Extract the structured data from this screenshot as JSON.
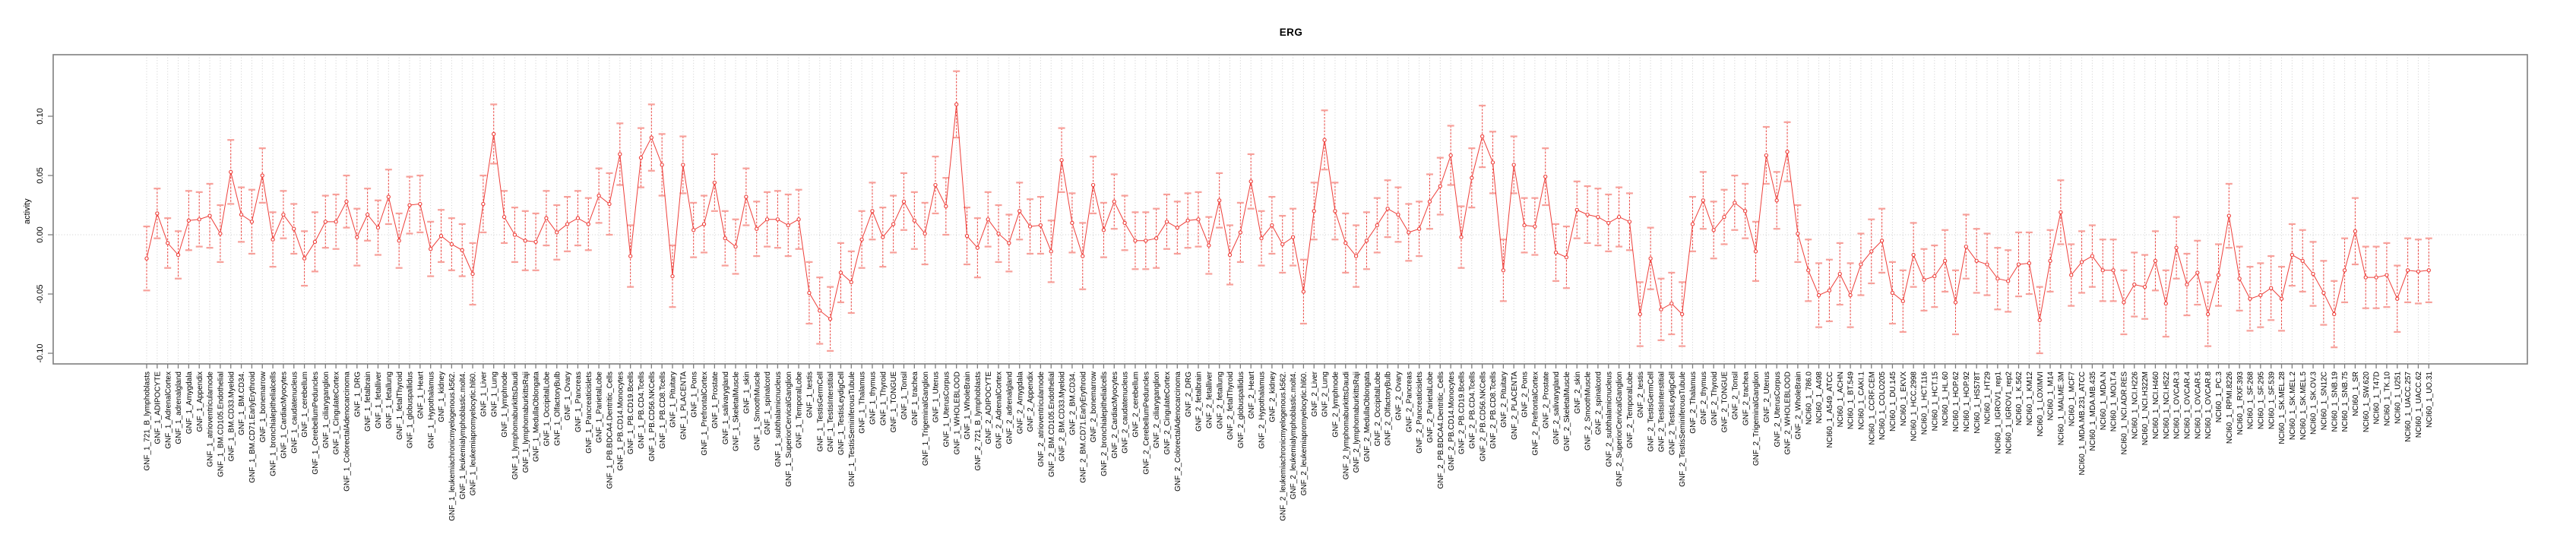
{
  "page": {
    "background": "#ffffff"
  },
  "chart_data": {
    "type": "line",
    "title": "ERG",
    "ylabel": "activity",
    "xlabel": "",
    "ylim": [
      -0.108,
      0.152
    ],
    "yticks": [
      -0.1,
      -0.05,
      0.0,
      0.05,
      0.1
    ],
    "grid": {
      "vertical_dotted_per_category": true,
      "horizontal_dotted_zero_line": true,
      "gridlines_horizontal_other": false
    },
    "legend_position": "none",
    "marker": "open-circle",
    "error_bars": "symmetric, dashed red stems with salmon caps",
    "colors": {
      "series": "#ee3f3a",
      "error_caps": "#f7a09a",
      "grid": "#cdcdcd",
      "axis": "#7e7e7e",
      "text": "#000000",
      "marker_fill": "#ffffff"
    },
    "categories": [
      "GNF_1_721_B_lymphoblasts",
      "GNF_1_ADIPOCYTE",
      "GNF_1_AdrenalCortex",
      "GNF_1_adrenalgland",
      "GNF_1_Amygdala",
      "GNF_1_Appendix",
      "GNF_1_atrioventricularnode",
      "GNF_1_BM.CD105.Endothelial",
      "GNF_1_BM.CD33.Myeloid",
      "GNF_1_BM.CD34.",
      "GNF_1_BM.CD71.EarlyErythroid",
      "GNF_1_bonemarrow",
      "GNF_1_bronchialepithelialcells",
      "GNF_1_CardiacMyocytes",
      "GNF_1_caudatenucleus",
      "GNF_1_cerebellum",
      "GNF_1_CerebellumPeduncles",
      "GNF_1_ciliaryganglion",
      "GNF_1_CingulateCortex",
      "GNF_1_ColorectalAdenocarcinoma",
      "GNF_1_DRG",
      "GNF_1_fetalbrain",
      "GNF_1_fetalliver",
      "GNF_1_fetallung",
      "GNF_1_fetalThyroid",
      "GNF_1_globuspallidus",
      "GNF_1_Heart",
      "GNF_1_Hypothalamus",
      "GNF_1_kidney",
      "GNF_1_leukemiachronicmyelogenous.k562.",
      "GNF_1_leukemialymphoblastic.molt4.",
      "GNF_1_leukemiapromyelocytic.hl60.",
      "GNF_1_Liver",
      "GNF_1_Lung",
      "GNF_1_lymphnode",
      "GNF_1_lymphomaburkittsDaudi",
      "GNF_1_lymphomaburkittsRaji",
      "GNF_1_MedullaOblongata",
      "GNF_1_OccipitalLobe",
      "GNF_1_OlfactoryBulb",
      "GNF_1_Ovary",
      "GNF_1_Pancreas",
      "GNF_1_Pancreaticislets",
      "GNF_1_ParietalLobe",
      "GNF_1_PB.BDCA4.Dentritic_Cells",
      "GNF_1_PB.CD14.Monocytes",
      "GNF_1_PB.CD19.Bcells",
      "GNF_1_PB.CD4.Tcells",
      "GNF_1_PB.CD56.NKCells",
      "GNF_1_PB.CD8.Tcells",
      "GNF_1_Pituitary",
      "GNF_1_PLACENTA",
      "GNF_1_Pons",
      "GNF_1_PrefrontalCortex",
      "GNF_1_Prostate",
      "GNF_1_salivarygland",
      "GNF_1_SkeletalMuscle",
      "GNF_1_skin",
      "GNF_1_SmoothMuscle",
      "GNF_1_spinalcord",
      "GNF_1_subthalamicnucleus",
      "GNF_1_SuperiorCervicalGanglion",
      "GNF_1_TemporalLobe",
      "GNF_1_testis",
      "GNF_1_TestisGermCell",
      "GNF_1_TestisInterstitial",
      "GNF_1_TestisLeydigCell",
      "GNF_1_TestisSeminiferousTubule",
      "GNF_1_Thalamus",
      "GNF_1_thymus",
      "GNF_1_Thyroid",
      "GNF_1_TONGUE",
      "GNF_1_Tonsil",
      "GNF_1_trachea",
      "GNF_1_TrigeminalGanglion",
      "GNF_1_Uterus",
      "GNF_1_UterusCorpus",
      "GNF_1_WHOLEBLOOD",
      "GNF_1_WholeBrain",
      "GNF_2_721_B_lymphoblasts",
      "GNF_2_ADIPOCYTE",
      "GNF_2_AdrenalCortex",
      "GNF_2_adrenalgland",
      "GNF_2_Amygdala",
      "GNF_2_Appendix",
      "GNF_2_atrioventricularnode",
      "GNF_2_BM.CD105.Endothelial",
      "GNF_2_BM.CD33.Myeloid",
      "GNF_2_BM.CD34.",
      "GNF_2_BM.CD71.EarlyErythroid",
      "GNF_2_bonemarrow",
      "GNF_2_bronchialepithelialcells",
      "GNF_2_CardiacMyocytes",
      "GNF_2_caudatenucleus",
      "GNF_2_cerebellum",
      "GNF_2_CerebellumPeduncles",
      "GNF_2_ciliaryganglion",
      "GNF_2_CingulateCortex",
      "GNF_2_ColorectalAdenocarcinoma",
      "GNF_2_DRG",
      "GNF_2_fetalbrain",
      "GNF_2_fetalliver",
      "GNF_2_fetallung",
      "GNF_2_fetalThyroid",
      "GNF_2_globuspallidus",
      "GNF_2_Heart",
      "GNF_2_Hypothalamus",
      "GNF_2_kidney",
      "GNF_2_leukemiachronicmyelogenous.k562.",
      "GNF_2_leukemialymphoblastic.molt4.",
      "GNF_2_leukemiapromyelocytic.hl60.",
      "GNF_2_Liver",
      "GNF_2_Lung",
      "GNF_2_lymphnode",
      "GNF_2_lymphomaburkittsDaudi",
      "GNF_2_lymphomaburkittsRaji",
      "GNF_2_MedullaOblongata",
      "GNF_2_OccipitalLobe",
      "GNF_2_OlfactoryBulb",
      "GNF_2_Ovary",
      "GNF_2_Pancreas",
      "GNF_2_Pancreaticislets",
      "GNF_2_ParietalLobe",
      "GNF_2_PB.BDCA4.Dentritic_Cells",
      "GNF_2_PB.CD14.Monocytes",
      "GNF_2_PB.CD19.Bcells",
      "GNF_2_PB.CD4.Tcells",
      "GNF_2_PB.CD56.NKCells",
      "GNF_2_PB.CD8.Tcells",
      "GNF_2_Pituitary",
      "GNF_2_PLACENTA",
      "GNF_2_Pons",
      "GNF_2_PrefrontalCortex",
      "GNF_2_Prostate",
      "GNF_2_salivarygland",
      "GNF_2_SkeletalMuscle",
      "GNF_2_skin",
      "GNF_2_SmoothMuscle",
      "GNF_2_spinalcord",
      "GNF_2_subthalamicnucleus",
      "GNF_2_SuperiorCervicalGanglion",
      "GNF_2_TemporalLobe",
      "GNF_2_testis",
      "GNF_2_TestisGermCell",
      "GNF_2_TestisInterstitial",
      "GNF_2_TestisLeydigCell",
      "GNF_2_TestisSeminiferousTubule",
      "GNF_2_Thalamus",
      "GNF_2_thymus",
      "GNF_2_Thyroid",
      "GNF_2_TONGUE",
      "GNF_2_Tonsil",
      "GNF_2_trachea",
      "GNF_2_TrigeminalGanglion",
      "GNF_2_Uterus",
      "GNF_2_UterusCorpus",
      "GNF_2_WHOLEBLOOD",
      "GNF_2_WholeBrain",
      "NCI60_1_786.0",
      "NCI60_1_A498",
      "NCI60_1_A549_ATCC",
      "NCI60_1_ACHN",
      "NCI60_1_BT.549",
      "NCI60_1_CAKI.1",
      "NCI60_1_CCRF.CEM",
      "NCI60_1_COLO205",
      "NCI60_1_DU.145",
      "NCI60_1_EKVX",
      "NCI60_1_HCC.2998",
      "NCI60_1_HCT.116",
      "NCI60_1_HCT.15",
      "NCI60_1_HL.60",
      "NCI60_1_HOP.62",
      "NCI60_1_HOP.92",
      "NCI60_1_HS578T",
      "NCI60_1_HT29",
      "NCI60_1_IGROV1_rep1",
      "NCI60_1_IGROV1_rep2",
      "NCI60_1_K.562",
      "NCI60_1_KM12",
      "NCI60_1_LOXIMVI",
      "NCI60_1_M14",
      "NCI60_1_MALME.3M",
      "NCI60_1_MCF7",
      "NCI60_1_MDA.MB.231_ATCC",
      "NCI60_1_MDA.MB.435",
      "NCI60_1_MDA.N",
      "NCI60_1_MOLT.4",
      "NCI60_1_NCI.ADR.RES",
      "NCI60_1_NCI.H226",
      "NCI60_1_NCI.H322M",
      "NCI60_1_NCI.H460",
      "NCI60_1_NCI.H522",
      "NCI60_1_OVCAR.3",
      "NCI60_1_OVCAR.4",
      "NCI60_1_OVCAR.5",
      "NCI60_1_OVCAR.8",
      "NCI60_1_PC.3",
      "NCI60_1_RPMI.8226",
      "NCI60_1_RXF.393",
      "NCI60_1_SF.268",
      "NCI60_1_SF.295",
      "NCI60_1_SF.539",
      "NCI60_1_SK.MEL.28",
      "NCI60_1_SK.MEL.2",
      "NCI60_1_SK.MEL.5",
      "NCI60_1_SK.OV.3",
      "NCI60_1_SN12C",
      "NCI60_1_SNB.19",
      "NCI60_1_SNB.75",
      "NCI60_1_SR",
      "NCI60_1_SW.620",
      "NCI60_1_T47D",
      "NCI60_1_TK.10",
      "NCI60_1_U251",
      "NCI60_1_UACC.257",
      "NCI60_1_UACC.62",
      "NCI60_1_UO.31"
    ],
    "series": [
      {
        "name": "activity",
        "values": [
          -0.02,
          0.018,
          -0.007,
          -0.017,
          0.012,
          0.013,
          0.016,
          0.001,
          0.053,
          0.017,
          0.011,
          0.05,
          -0.004,
          0.017,
          0.005,
          -0.02,
          -0.006,
          0.011,
          0.011,
          0.028,
          -0.002,
          0.017,
          0.006,
          0.032,
          -0.005,
          0.025,
          0.026,
          -0.012,
          -0.001,
          -0.008,
          -0.013,
          -0.033,
          0.026,
          0.085,
          0.015,
          0.0,
          -0.005,
          -0.006,
          0.014,
          0.002,
          0.009,
          0.014,
          0.009,
          0.033,
          0.026,
          0.068,
          -0.018,
          0.065,
          0.082,
          0.059,
          -0.035,
          0.059,
          0.004,
          0.009,
          0.044,
          -0.003,
          -0.01,
          0.032,
          0.005,
          0.013,
          0.013,
          0.008,
          0.013,
          -0.049,
          -0.064,
          -0.071,
          -0.032,
          -0.04,
          -0.004,
          0.02,
          -0.002,
          0.009,
          0.028,
          0.012,
          0.001,
          0.042,
          0.024,
          0.11,
          -0.001,
          -0.011,
          0.013,
          0.001,
          -0.007,
          0.02,
          0.007,
          0.008,
          -0.014,
          0.063,
          0.01,
          -0.018,
          0.042,
          0.004,
          0.028,
          0.01,
          -0.005,
          -0.005,
          -0.003,
          0.011,
          0.006,
          0.012,
          0.013,
          -0.009,
          0.029,
          -0.017,
          0.002,
          0.045,
          -0.003,
          0.008,
          -0.008,
          -0.002,
          -0.048,
          0.02,
          0.08,
          0.02,
          -0.007,
          -0.018,
          -0.005,
          0.008,
          0.022,
          0.017,
          0.002,
          0.005,
          0.028,
          0.041,
          0.067,
          -0.002,
          0.048,
          0.083,
          0.061,
          -0.03,
          0.059,
          0.008,
          0.007,
          0.049,
          -0.015,
          -0.019,
          0.021,
          0.017,
          0.015,
          0.01,
          0.015,
          0.011,
          -0.067,
          -0.02,
          -0.063,
          -0.058,
          -0.067,
          0.009,
          0.029,
          0.004,
          0.015,
          0.027,
          0.02,
          -0.014,
          0.067,
          0.029,
          0.07,
          0.001,
          -0.03,
          -0.051,
          -0.047,
          -0.033,
          -0.051,
          -0.025,
          -0.014,
          -0.005,
          -0.049,
          -0.056,
          -0.017,
          -0.038,
          -0.035,
          -0.022,
          -0.057,
          -0.01,
          -0.022,
          -0.025,
          -0.037,
          -0.039,
          -0.025,
          -0.024,
          -0.072,
          -0.022,
          0.019,
          -0.034,
          -0.023,
          -0.018,
          -0.03,
          -0.03,
          -0.057,
          -0.042,
          -0.044,
          -0.022,
          -0.058,
          -0.011,
          -0.042,
          -0.032,
          -0.067,
          -0.034,
          0.016,
          -0.037,
          -0.054,
          -0.051,
          -0.045,
          -0.054,
          -0.017,
          -0.022,
          -0.033,
          -0.049,
          -0.067,
          -0.03,
          0.003,
          -0.036,
          -0.036,
          -0.034,
          -0.054,
          -0.03,
          -0.031,
          -0.03
        ],
        "err": [
          0.027,
          0.021,
          0.021,
          0.02,
          0.025,
          0.023,
          0.027,
          0.024,
          0.027,
          0.023,
          0.027,
          0.023,
          0.023,
          0.02,
          0.021,
          0.023,
          0.025,
          0.022,
          0.023,
          0.022,
          0.024,
          0.022,
          0.023,
          0.023,
          0.023,
          0.024,
          0.024,
          0.023,
          0.022,
          0.022,
          0.022,
          0.026,
          0.024,
          0.025,
          0.022,
          0.023,
          0.025,
          0.024,
          0.023,
          0.023,
          0.023,
          0.023,
          0.022,
          0.023,
          0.026,
          0.026,
          0.026,
          0.025,
          0.028,
          0.026,
          0.026,
          0.024,
          0.023,
          0.024,
          0.024,
          0.023,
          0.023,
          0.024,
          0.023,
          0.023,
          0.024,
          0.026,
          0.025,
          0.026,
          0.028,
          0.027,
          0.025,
          0.026,
          0.024,
          0.024,
          0.025,
          0.024,
          0.024,
          0.024,
          0.026,
          0.024,
          0.024,
          0.028,
          0.024,
          0.025,
          0.023,
          0.024,
          0.024,
          0.024,
          0.023,
          0.024,
          0.026,
          0.027,
          0.025,
          0.028,
          0.024,
          0.023,
          0.023,
          0.023,
          0.024,
          0.024,
          0.025,
          0.023,
          0.022,
          0.023,
          0.023,
          0.024,
          0.023,
          0.025,
          0.025,
          0.023,
          0.023,
          0.024,
          0.024,
          0.024,
          0.027,
          0.024,
          0.025,
          0.024,
          0.025,
          0.026,
          0.024,
          0.023,
          0.024,
          0.023,
          0.024,
          0.023,
          0.023,
          0.024,
          0.025,
          0.026,
          0.025,
          0.026,
          0.026,
          0.026,
          0.024,
          0.023,
          0.024,
          0.024,
          0.024,
          0.026,
          0.024,
          0.024,
          0.024,
          0.024,
          0.025,
          0.024,
          0.027,
          0.026,
          0.026,
          0.026,
          0.027,
          0.023,
          0.024,
          0.024,
          0.023,
          0.023,
          0.023,
          0.025,
          0.024,
          0.024,
          0.025,
          0.024,
          0.026,
          0.027,
          0.026,
          0.026,
          0.027,
          0.026,
          0.027,
          0.027,
          0.026,
          0.026,
          0.027,
          0.026,
          0.026,
          0.026,
          0.027,
          0.027,
          0.027,
          0.026,
          0.026,
          0.026,
          0.027,
          0.026,
          0.028,
          0.026,
          0.027,
          0.026,
          0.026,
          0.026,
          0.026,
          0.026,
          0.027,
          0.027,
          0.027,
          0.025,
          0.028,
          0.026,
          0.026,
          0.027,
          0.027,
          0.026,
          0.027,
          0.027,
          0.027,
          0.027,
          0.027,
          0.027,
          0.026,
          0.026,
          0.027,
          0.027,
          0.028,
          0.027,
          0.028,
          0.026,
          0.026,
          0.027,
          0.028,
          0.027,
          0.027,
          0.027
        ]
      }
    ]
  }
}
